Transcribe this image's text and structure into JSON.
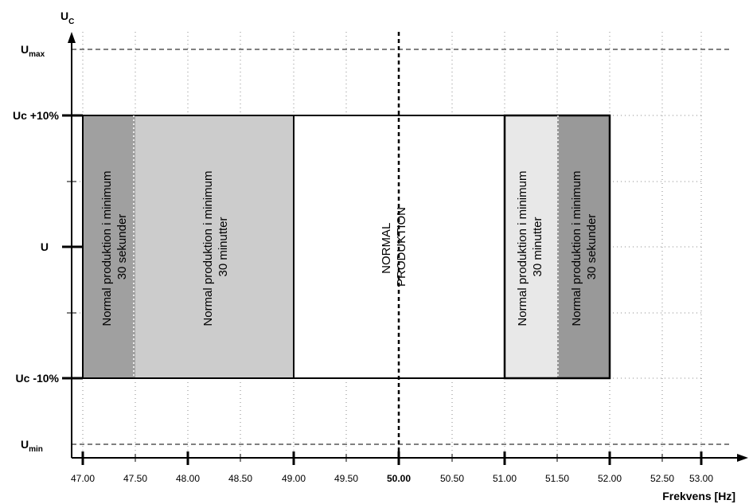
{
  "y_axis": {
    "title_main": "U",
    "title_sub": "C",
    "labels": {
      "umax_main": "U",
      "umax_sub": "max",
      "uc_plus": "Uc +10%",
      "u": "U",
      "uc_minus": "Uc -10%",
      "umin_main": "U",
      "umin_sub": "min"
    }
  },
  "x_axis": {
    "title": "Frekvens [Hz]",
    "ticks": [
      "47.00",
      "47.50",
      "48.00",
      "48.50",
      "49.00",
      "49.50",
      "50.00",
      "50.50",
      "51.00",
      "51.50",
      "52.00",
      "52.50",
      "53.00"
    ],
    "bold_tick": "50.00"
  },
  "zones": [
    {
      "from": 47.0,
      "to": 47.5,
      "color": "#a0a0a0",
      "lines": [
        "Normal produktion i minimum",
        "30 sekunder"
      ]
    },
    {
      "from": 47.5,
      "to": 49.0,
      "color": "#cccccc",
      "lines": [
        "Normal produktion i minimum",
        "30 minutter"
      ]
    },
    {
      "from": 49.0,
      "to": 51.0,
      "color": "#ffffff",
      "lines": [
        "NORMAL",
        "PRODUKTION"
      ]
    },
    {
      "from": 51.0,
      "to": 51.5,
      "color": "#e8e8e8",
      "lines": [
        "Normal produktion i minimum",
        "30 minutter"
      ]
    },
    {
      "from": 51.5,
      "to": 52.0,
      "color": "#999999",
      "lines": [
        "Normal produktion i minimum",
        "30 sekunder"
      ]
    }
  ]
}
